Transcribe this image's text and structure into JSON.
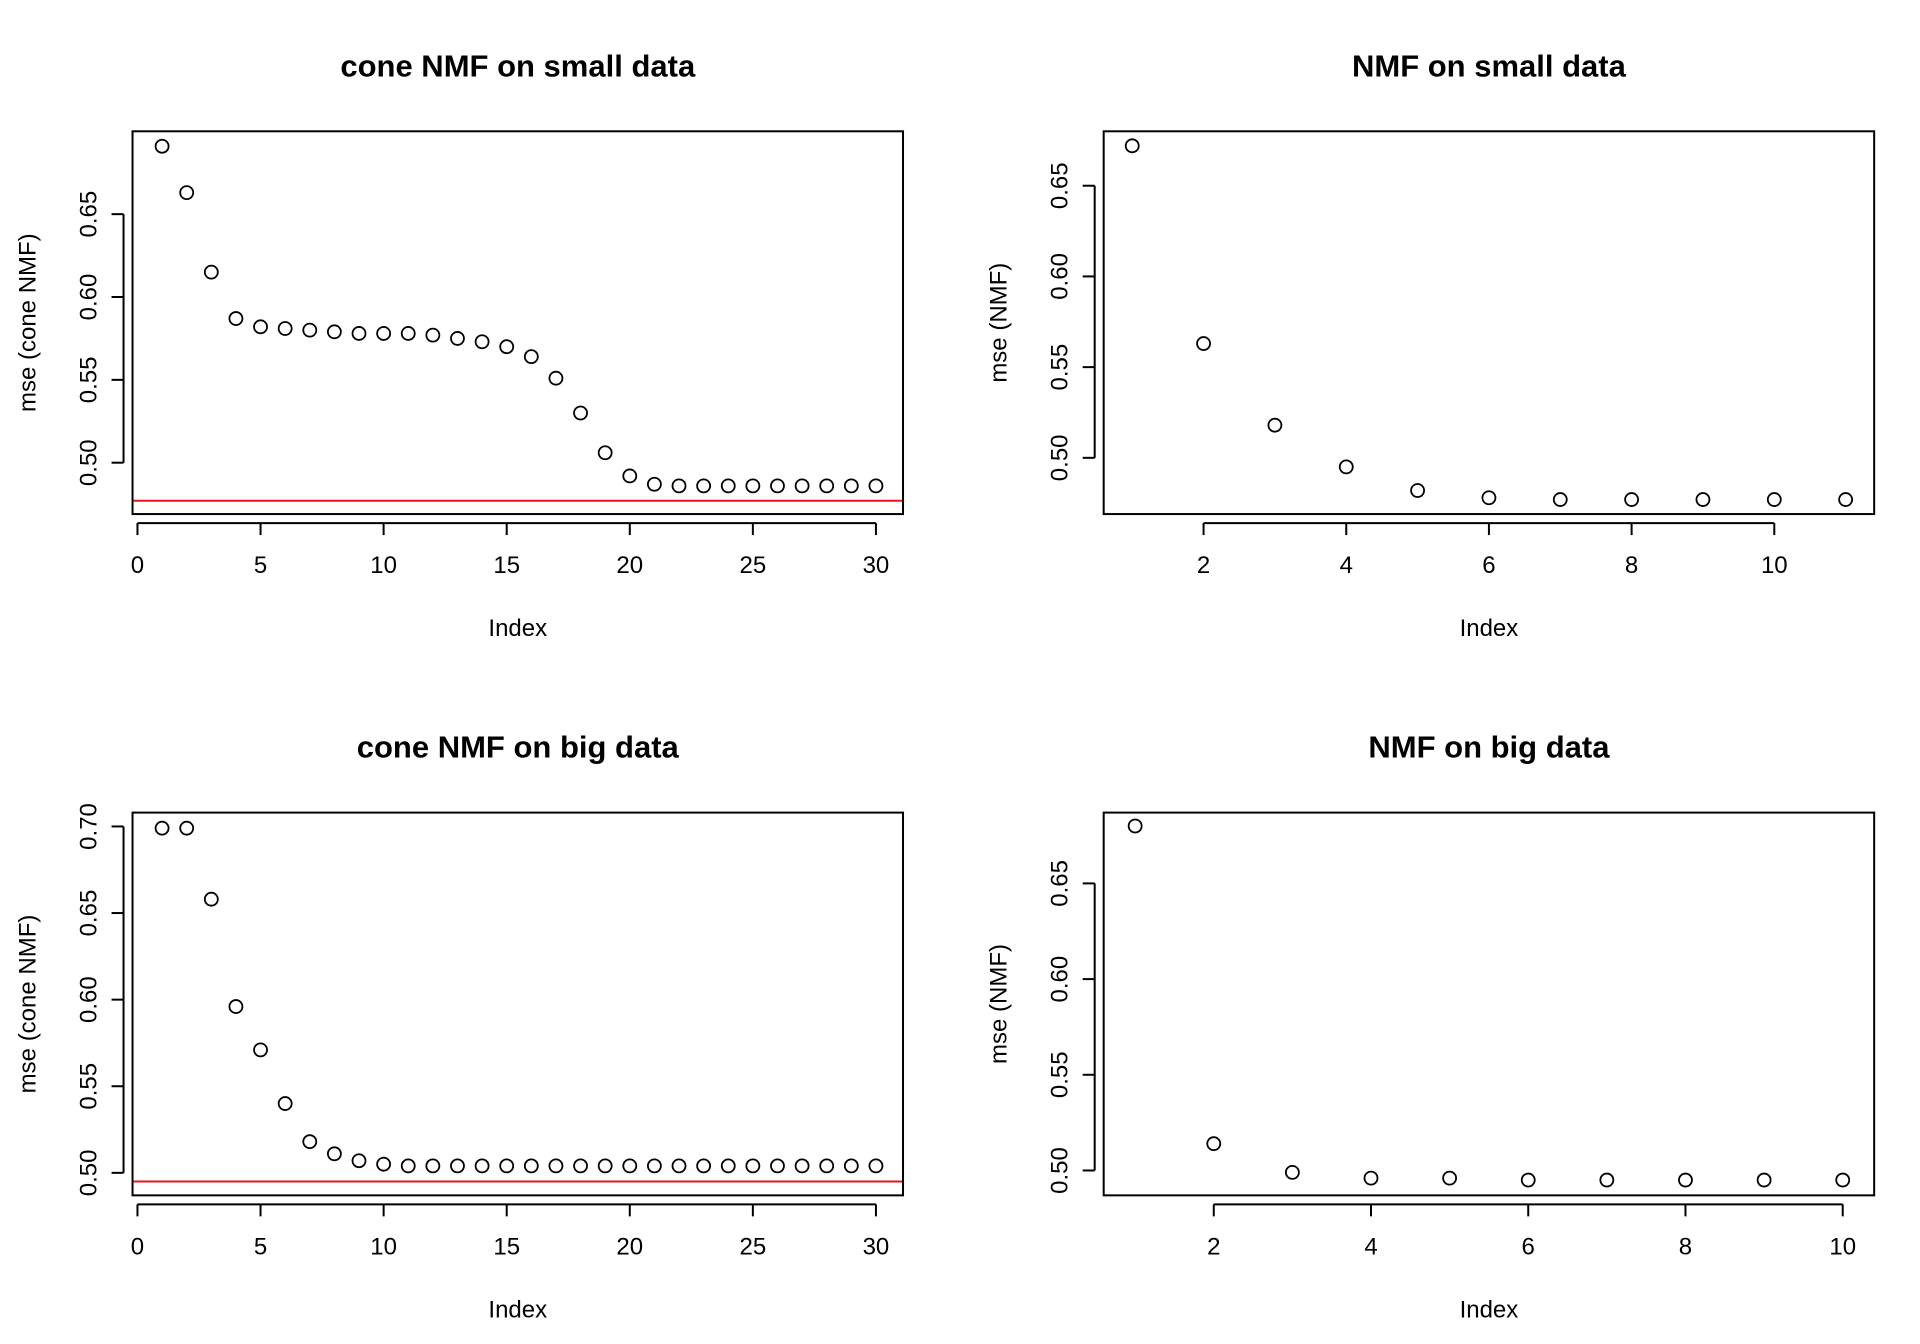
{
  "chart_data": [
    {
      "type": "scatter",
      "title": "cone NMF on small data",
      "xlabel": "Index",
      "ylabel": "mse (cone NMF)",
      "xlim": [
        -0.2,
        31.1
      ],
      "ylim": [
        0.469,
        0.7
      ],
      "xticks": [
        0,
        5,
        10,
        15,
        20,
        25,
        30
      ],
      "yticks": [
        0.5,
        0.55,
        0.6,
        0.65
      ],
      "x": [
        1,
        2,
        3,
        4,
        5,
        6,
        7,
        8,
        9,
        10,
        11,
        12,
        13,
        14,
        15,
        16,
        17,
        18,
        19,
        20,
        21,
        22,
        23,
        24,
        25,
        26,
        27,
        28,
        29,
        30
      ],
      "y": [
        0.691,
        0.663,
        0.615,
        0.587,
        0.582,
        0.581,
        0.58,
        0.579,
        0.578,
        0.578,
        0.578,
        0.577,
        0.575,
        0.573,
        0.57,
        0.564,
        0.551,
        0.53,
        0.506,
        0.492,
        0.487,
        0.486,
        0.486,
        0.486,
        0.486,
        0.486,
        0.486,
        0.486,
        0.486,
        0.486
      ],
      "hline": 0.477,
      "hline_color": "#e8141b"
    },
    {
      "type": "scatter",
      "title": "NMF on small data",
      "xlabel": "Index",
      "ylabel": "mse (NMF)",
      "xlim": [
        0.6,
        11.4
      ],
      "ylim": [
        0.469,
        0.68
      ],
      "xticks": [
        2,
        4,
        6,
        8,
        10
      ],
      "yticks": [
        0.5,
        0.55,
        0.6,
        0.65
      ],
      "x": [
        1,
        2,
        3,
        4,
        5,
        6,
        7,
        8,
        9,
        10,
        11
      ],
      "y": [
        0.672,
        0.563,
        0.518,
        0.495,
        0.482,
        0.478,
        0.477,
        0.477,
        0.477,
        0.477,
        0.477
      ]
    },
    {
      "type": "scatter",
      "title": "cone NMF on big data",
      "xlabel": "Index",
      "ylabel": "mse (cone NMF)",
      "xlim": [
        -0.2,
        31.1
      ],
      "ylim": [
        0.487,
        0.708
      ],
      "xticks": [
        0,
        5,
        10,
        15,
        20,
        25,
        30
      ],
      "yticks": [
        0.5,
        0.55,
        0.6,
        0.65,
        0.7
      ],
      "x": [
        1,
        2,
        3,
        4,
        5,
        6,
        7,
        8,
        9,
        10,
        11,
        12,
        13,
        14,
        15,
        16,
        17,
        18,
        19,
        20,
        21,
        22,
        23,
        24,
        25,
        26,
        27,
        28,
        29,
        30
      ],
      "y": [
        0.699,
        0.699,
        0.658,
        0.596,
        0.571,
        0.54,
        0.518,
        0.511,
        0.507,
        0.505,
        0.504,
        0.504,
        0.504,
        0.504,
        0.504,
        0.504,
        0.504,
        0.504,
        0.504,
        0.504,
        0.504,
        0.504,
        0.504,
        0.504,
        0.504,
        0.504,
        0.504,
        0.504,
        0.504,
        0.504
      ],
      "hline": 0.495,
      "hline_color": "#e8141b"
    },
    {
      "type": "scatter",
      "title": "NMF on big data",
      "xlabel": "Index",
      "ylabel": "mse (NMF)",
      "xlim": [
        0.6,
        10.4
      ],
      "ylim": [
        0.487,
        0.687
      ],
      "xticks": [
        2,
        4,
        6,
        8,
        10
      ],
      "yticks": [
        0.5,
        0.55,
        0.6,
        0.65
      ],
      "x": [
        1,
        2,
        3,
        4,
        5,
        6,
        7,
        8,
        9,
        10
      ],
      "y": [
        0.68,
        0.514,
        0.499,
        0.496,
        0.496,
        0.495,
        0.495,
        0.495,
        0.495,
        0.495
      ]
    }
  ]
}
